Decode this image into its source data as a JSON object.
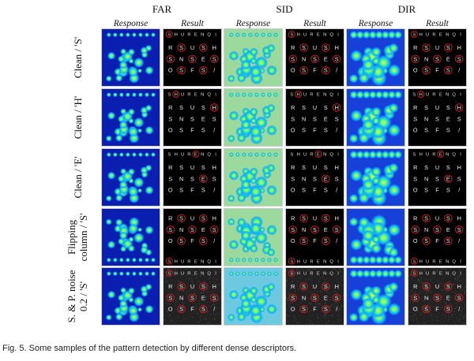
{
  "groups": [
    "FAR",
    "SID",
    "DIR"
  ],
  "subheaders": [
    "Response",
    "Result",
    "Response",
    "Result",
    "Response",
    "Result"
  ],
  "rows": [
    {
      "label1": "Clean / 'S'",
      "label2": "",
      "target": "S",
      "noise": false,
      "flip": false
    },
    {
      "label1": "Clean / 'H'",
      "label2": "",
      "target": "H",
      "noise": false,
      "flip": false
    },
    {
      "label1": "Clean / 'E'",
      "label2": "",
      "target": "E",
      "noise": false,
      "flip": false
    },
    {
      "label1": "Flipping",
      "label2": "column / 'S'",
      "target": "S",
      "noise": false,
      "flip": true
    },
    {
      "label1": "S. & P. noise",
      "label2": "0.2 / 'S'",
      "target": "S",
      "noise": true,
      "flip": false
    }
  ],
  "pattern_text": "SHURENQI",
  "colors": {
    "far_bg": "#0a1fb0",
    "sid_bg": "#7fd3d8",
    "dir_bg": "#1640d8",
    "circle": "#d11a1a"
  },
  "caption": "Fig. 5. Some samples of the pattern detection by different dense descriptors."
}
